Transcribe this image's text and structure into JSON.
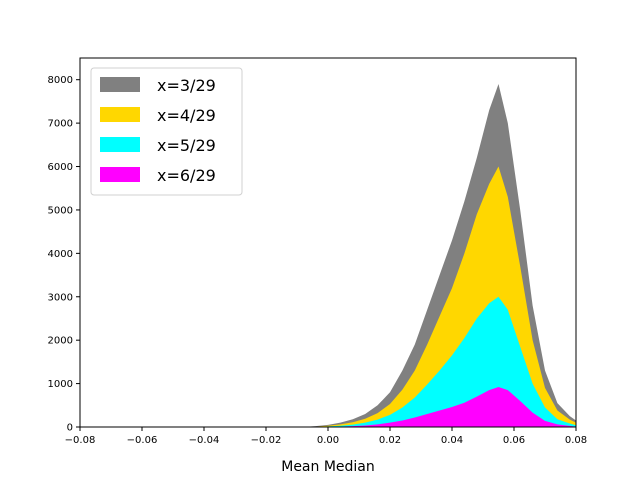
{
  "chart_data": {
    "type": "histogram",
    "title": "",
    "xlabel": "Mean Median",
    "ylabel": "",
    "xlim": [
      -0.08,
      0.08
    ],
    "ylim": [
      0,
      8500
    ],
    "xticks": [
      -0.08,
      -0.06,
      -0.04,
      -0.02,
      0.0,
      0.02,
      0.04,
      0.06,
      0.08
    ],
    "xtick_labels": [
      "−0.08",
      "−0.06",
      "−0.04",
      "−0.02",
      "0.00",
      "0.02",
      "0.04",
      "0.06",
      "0.08"
    ],
    "yticks": [
      0,
      1000,
      2000,
      3000,
      4000,
      5000,
      6000,
      7000,
      8000
    ],
    "ytick_labels": [
      "0",
      "1000",
      "2000",
      "3000",
      "4000",
      "5000",
      "6000",
      "7000",
      "8000"
    ],
    "grid": false,
    "legend_position": "top-left",
    "x": [
      -0.008,
      -0.004,
      0.0,
      0.004,
      0.008,
      0.012,
      0.016,
      0.02,
      0.024,
      0.028,
      0.032,
      0.036,
      0.04,
      0.044,
      0.048,
      0.052,
      0.055,
      0.058,
      0.062,
      0.066,
      0.07,
      0.074,
      0.078,
      0.08
    ],
    "series": [
      {
        "name": "x=3/29",
        "color": "#808080",
        "values": [
          0,
          20,
          50,
          100,
          180,
          300,
          500,
          800,
          1300,
          1900,
          2700,
          3500,
          4300,
          5200,
          6200,
          7300,
          7900,
          7000,
          5000,
          2800,
          1300,
          550,
          250,
          150
        ]
      },
      {
        "name": "x=4/29",
        "color": "#ffd700",
        "values": [
          0,
          10,
          30,
          60,
          110,
          190,
          320,
          530,
          860,
          1300,
          1900,
          2550,
          3200,
          4000,
          4900,
          5600,
          6000,
          5300,
          3700,
          2000,
          900,
          380,
          170,
          100
        ]
      },
      {
        "name": "x=5/29",
        "color": "#00ffff",
        "values": [
          0,
          5,
          15,
          30,
          55,
          100,
          170,
          280,
          450,
          680,
          980,
          1300,
          1650,
          2050,
          2500,
          2850,
          3000,
          2700,
          1850,
          1000,
          450,
          180,
          80,
          40
        ]
      },
      {
        "name": "x=6/29",
        "color": "#ff00ff",
        "values": [
          0,
          2,
          5,
          10,
          20,
          35,
          60,
          100,
          150,
          220,
          300,
          380,
          460,
          560,
          700,
          850,
          920,
          850,
          600,
          330,
          140,
          60,
          25,
          10
        ]
      }
    ]
  }
}
